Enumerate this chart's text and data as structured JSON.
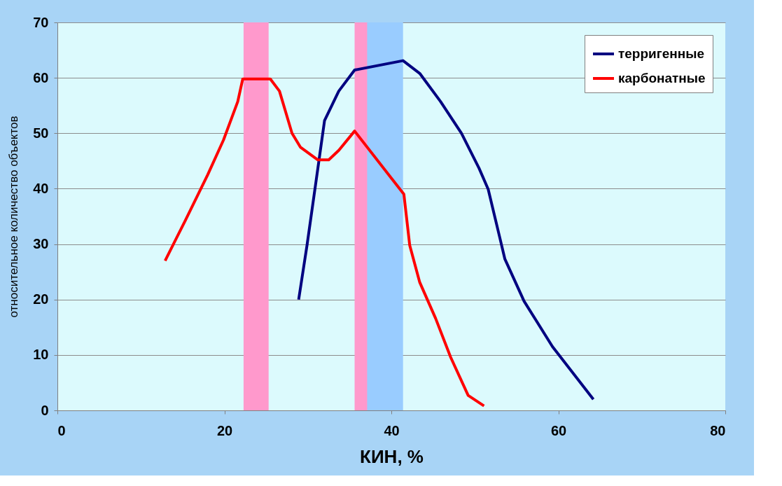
{
  "chart_data": {
    "type": "line",
    "xlabel": "КИН, %",
    "ylabel": "относительное количество объектов",
    "xlim": [
      0,
      80
    ],
    "xticks": [
      0,
      20,
      40,
      60,
      80
    ],
    "ylim": [
      0,
      70
    ],
    "yticks": [
      0,
      10,
      20,
      30,
      40,
      50,
      60,
      70
    ],
    "grid": "y",
    "legend": "top right",
    "line_style": "solid",
    "marker": "none",
    "series": [
      {
        "name": "терригенные",
        "color": "#000080",
        "x": [
          28.9,
          29.9,
          31.2,
          32.0,
          33.7,
          35.6,
          41.4,
          43.4,
          45.9,
          48.4,
          50.5,
          51.6,
          53.0,
          53.6,
          55.9,
          59.3,
          64.2
        ],
        "values": [
          20.0,
          29.8,
          43.7,
          52.3,
          57.6,
          61.4,
          63.1,
          60.8,
          55.7,
          50.0,
          43.7,
          39.9,
          31.1,
          27.3,
          19.7,
          11.5,
          2.0
        ]
      },
      {
        "name": "карбонатные",
        "color": "#ff0000",
        "x": [
          12.9,
          15.3,
          18.0,
          19.9,
          21.6,
          22.2,
          25.5,
          26.6,
          28.1,
          29.1,
          31.2,
          32.5,
          33.7,
          35.6,
          41.5,
          42.2,
          43.4,
          45.3,
          47.1,
          49.2,
          51.1
        ],
        "values": [
          27.0,
          34.2,
          42.5,
          48.8,
          55.7,
          59.8,
          59.8,
          57.6,
          50.0,
          47.5,
          45.2,
          45.2,
          46.9,
          50.4,
          39.0,
          29.8,
          23.1,
          16.6,
          9.6,
          2.7,
          0.8
        ]
      }
    ],
    "bands": [
      {
        "axis": "x",
        "from": 22.3,
        "to": 25.3,
        "color": "#ff99cc"
      },
      {
        "axis": "x",
        "from": 35.6,
        "to": 38.6,
        "color": "#ff99cc"
      },
      {
        "axis": "x",
        "from": 37.1,
        "to": 41.4,
        "color": "#99ccff"
      }
    ]
  }
}
